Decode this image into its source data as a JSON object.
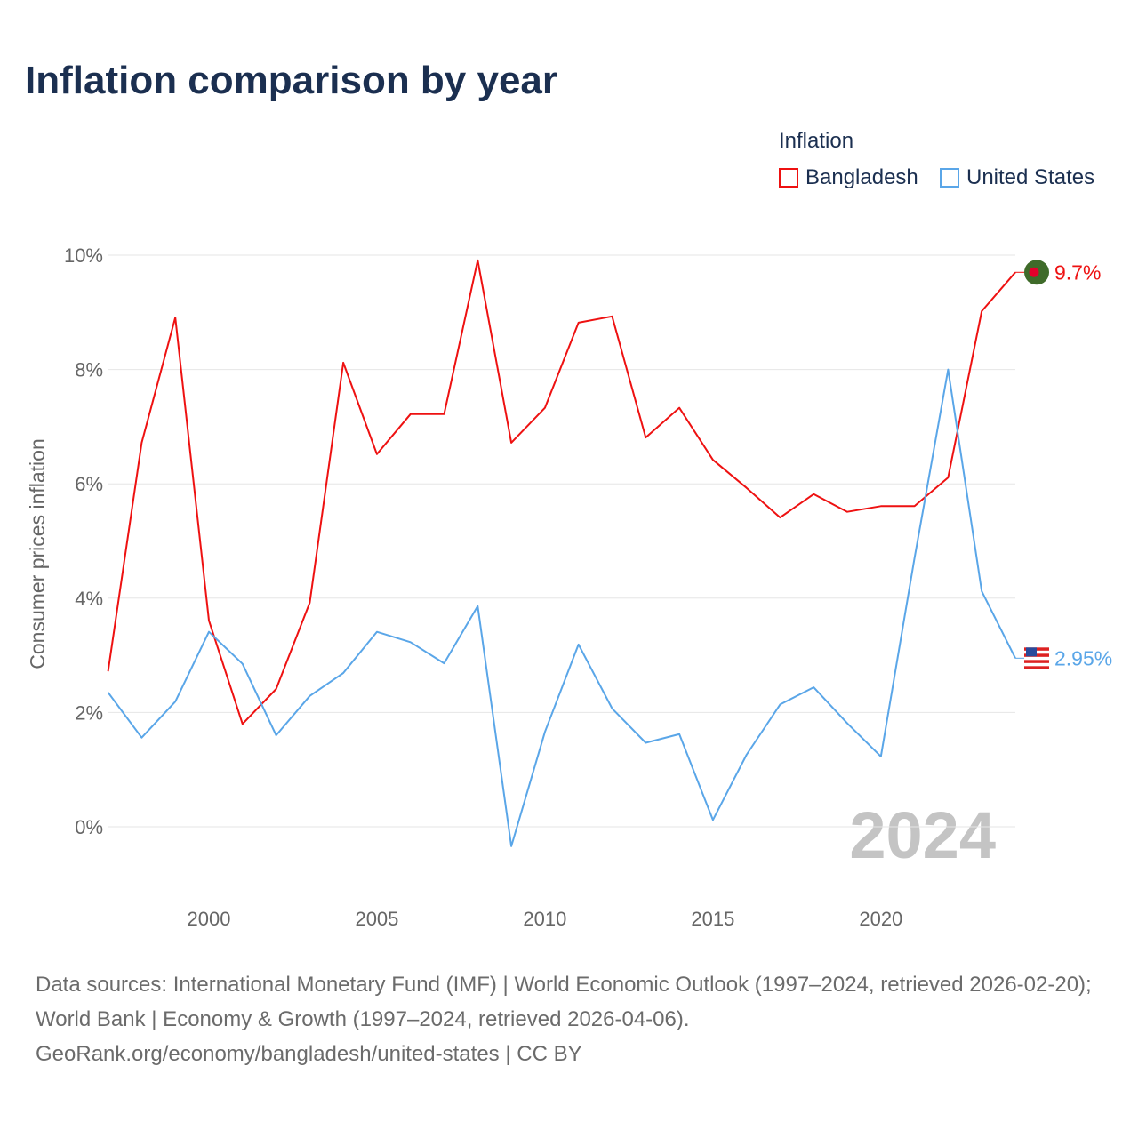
{
  "title": "Inflation comparison by year",
  "legend": {
    "title": "Inflation",
    "items": [
      {
        "name": "Bangladesh",
        "color": "#ee1111"
      },
      {
        "name": "United States",
        "color": "#5aa6e8"
      }
    ]
  },
  "footer": {
    "sources": "Data sources: International Monetary Fund (IMF) | World Economic Outlook (1997–2024, retrieved 2026-02-20); World Bank | Economy & Growth (1997–2024, retrieved 2026-04-06).",
    "credit": "GeoRank.org/economy/bangladesh/united-states | CC BY"
  },
  "chart_data": {
    "type": "line",
    "title": "Inflation comparison by year",
    "xlabel": "",
    "ylabel": "Consumer prices inflation",
    "xlim": [
      1997,
      2024
    ],
    "ylim": [
      -1.2,
      10
    ],
    "xticks": [
      2000,
      2005,
      2010,
      2015,
      2020
    ],
    "yticks": [
      0,
      2,
      4,
      6,
      8,
      10
    ],
    "ytick_labels": [
      "0%",
      "2%",
      "4%",
      "6%",
      "8%",
      "10%"
    ],
    "grid": true,
    "legend_position": "top-right",
    "year_watermark": "2024",
    "x": [
      1997,
      1998,
      1999,
      2000,
      2001,
      2002,
      2003,
      2004,
      2005,
      2006,
      2007,
      2008,
      2009,
      2010,
      2011,
      2012,
      2013,
      2014,
      2015,
      2016,
      2017,
      2018,
      2019,
      2020,
      2021,
      2022,
      2023,
      2024
    ],
    "series": [
      {
        "name": "Bangladesh",
        "color": "#ee1111",
        "end_label": "9.7%",
        "flag": "bangladesh-flag",
        "values": [
          2.72,
          6.72,
          8.91,
          3.61,
          1.8,
          2.41,
          3.92,
          8.12,
          6.52,
          7.22,
          7.22,
          9.91,
          6.72,
          7.33,
          8.82,
          8.93,
          6.81,
          7.33,
          6.42,
          5.93,
          5.41,
          5.82,
          5.51,
          5.61,
          5.61,
          6.11,
          9.02,
          9.7
        ]
      },
      {
        "name": "United States",
        "color": "#5aa6e8",
        "end_label": "2.95%",
        "flag": "us-flag",
        "values": [
          2.35,
          1.56,
          2.19,
          3.41,
          2.85,
          1.6,
          2.29,
          2.69,
          3.41,
          3.23,
          2.86,
          3.86,
          -0.34,
          1.66,
          3.19,
          2.07,
          1.47,
          1.62,
          0.12,
          1.26,
          2.14,
          2.44,
          1.81,
          1.23,
          4.7,
          8.0,
          4.12,
          2.95
        ]
      }
    ]
  }
}
